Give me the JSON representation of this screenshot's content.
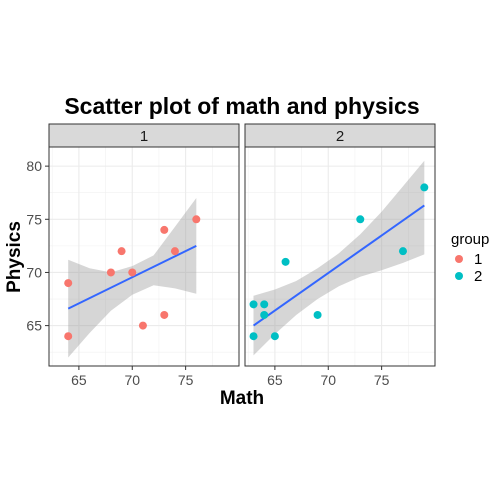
{
  "chart_data": {
    "type": "scatter",
    "title": "Scatter plot of math and physics",
    "xlabel": "Math",
    "ylabel": "Physics",
    "xlim": [
      62.2,
      80
    ],
    "ylim": [
      61.2,
      81.8
    ],
    "x_ticks": [
      65,
      70,
      75
    ],
    "y_ticks": [
      65,
      70,
      75,
      80
    ],
    "grid": true,
    "legend": {
      "title": "group",
      "position": "right"
    },
    "colors": {
      "1": "#F8766D",
      "2": "#00BFC4",
      "fit_line": "#3366FF",
      "band": "#999999"
    },
    "panels": [
      {
        "strip": "1",
        "group": "1",
        "points": [
          [
            64,
            69
          ],
          [
            64,
            64
          ],
          [
            68,
            70
          ],
          [
            69,
            72
          ],
          [
            70,
            70
          ],
          [
            71,
            65
          ],
          [
            73,
            74
          ],
          [
            73,
            66
          ],
          [
            74,
            72
          ],
          [
            76,
            75
          ]
        ],
        "fit": {
          "x": [
            64,
            76
          ],
          "y": [
            66.6,
            72.5
          ]
        },
        "band": {
          "x": [
            64,
            66,
            68,
            70,
            72,
            74,
            76
          ],
          "lower": [
            62.0,
            64.3,
            66.4,
            67.9,
            68.8,
            68.5,
            68.0
          ],
          "upper": [
            71.2,
            70.4,
            70.0,
            70.6,
            71.6,
            74.3,
            77.0
          ]
        }
      },
      {
        "strip": "2",
        "group": "2",
        "points": [
          [
            63,
            67
          ],
          [
            63,
            64
          ],
          [
            64,
            67
          ],
          [
            64,
            66
          ],
          [
            65,
            64
          ],
          [
            66,
            71
          ],
          [
            69,
            66
          ],
          [
            73,
            75
          ],
          [
            77,
            72
          ],
          [
            79,
            78
          ]
        ],
        "fit": {
          "x": [
            63,
            79
          ],
          "y": [
            65.0,
            76.3
          ]
        },
        "band": {
          "x": [
            63,
            65,
            67,
            69,
            71,
            73,
            75,
            77,
            79
          ],
          "lower": [
            62.2,
            64.2,
            66.0,
            67.5,
            68.7,
            69.6,
            70.2,
            70.9,
            71.7
          ],
          "upper": [
            67.8,
            68.4,
            69.2,
            70.4,
            71.8,
            73.6,
            75.7,
            78.1,
            80.5
          ]
        }
      }
    ],
    "legend_entries": [
      "1",
      "2"
    ]
  }
}
